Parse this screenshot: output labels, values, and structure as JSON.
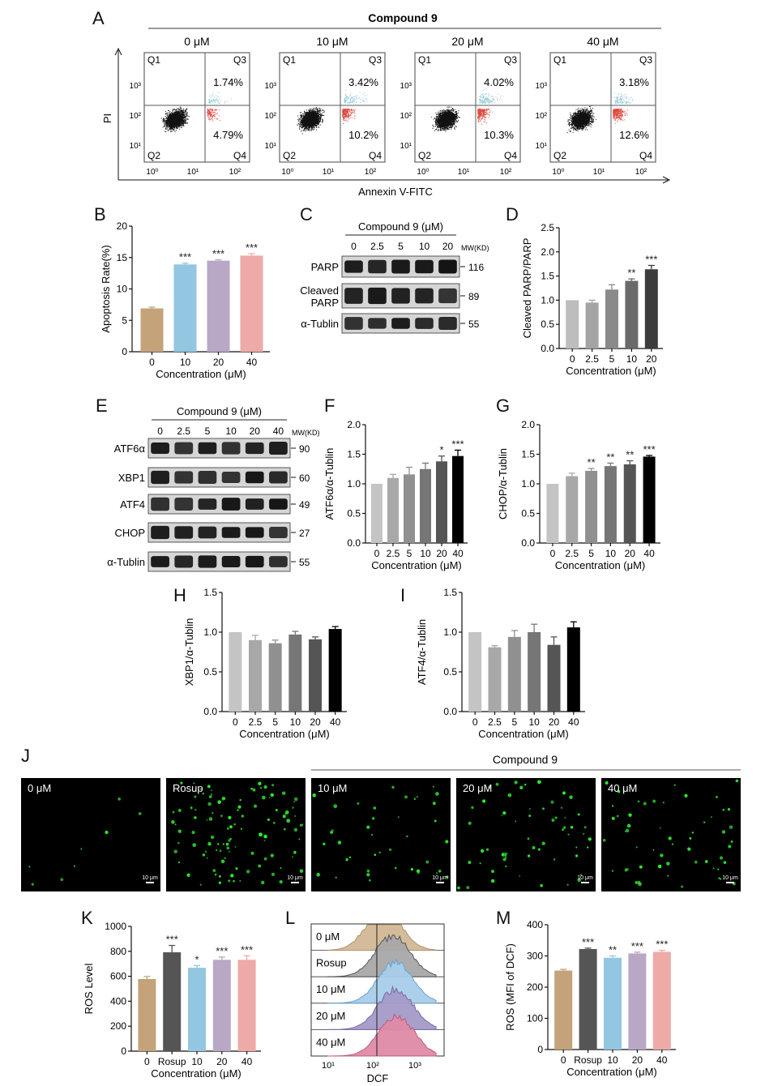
{
  "chart_data": [
    {
      "panel": "A",
      "type": "scatter",
      "header": "Compound 9",
      "xlabel": "Annexin V-FITC",
      "ylabel": "PI",
      "xticks": [
        "10⁰",
        "10¹",
        "10²"
      ],
      "yticks": [
        "10¹",
        "10²",
        "10³"
      ],
      "quadrant_labels": [
        "Q1",
        "Q2",
        "Q3",
        "Q4"
      ],
      "plots": [
        {
          "title": "0 μM",
          "q3": "1.74%",
          "q4": "4.79%"
        },
        {
          "title": "10 μM",
          "q3": "3.42%",
          "q4": "10.2%"
        },
        {
          "title": "20 μM",
          "q3": "4.02%",
          "q4": "10.3%"
        },
        {
          "title": "40 μM",
          "q3": "3.18%",
          "q4": "12.6%"
        }
      ]
    },
    {
      "panel": "B",
      "type": "bar",
      "categories": [
        "0",
        "10",
        "20",
        "40"
      ],
      "values": [
        6.9,
        13.9,
        14.5,
        15.3
      ],
      "errors": [
        0.2,
        0.2,
        0.15,
        0.3
      ],
      "stars": [
        "",
        "***",
        "***",
        "***"
      ],
      "colors": [
        "#c4a27a",
        "#93c6e0",
        "#b8a8c6",
        "#eeaaa6"
      ],
      "xlabel": "Concentration (μM)",
      "ylabel": "Apoptosis Rate(%)",
      "ylim": [
        0,
        20
      ],
      "yticks": [
        0,
        5,
        10,
        15,
        20
      ]
    },
    {
      "panel": "C",
      "type": "table",
      "header": "Compound 9 (μM)",
      "lanes": [
        "0",
        "2.5",
        "5",
        "10",
        "20"
      ],
      "mw_label": "MW(KD)",
      "bands": [
        {
          "name": "PARP",
          "mw": "116"
        },
        {
          "name": "Cleaved PARP",
          "mw": "89"
        },
        {
          "name": "α-Tublin",
          "mw": "55"
        }
      ]
    },
    {
      "panel": "D",
      "type": "bar",
      "categories": [
        "0",
        "2.5",
        "5",
        "10",
        "20"
      ],
      "values": [
        1.0,
        0.95,
        1.22,
        1.4,
        1.64
      ],
      "errors": [
        0.0,
        0.05,
        0.1,
        0.04,
        0.08
      ],
      "stars": [
        "",
        "",
        "",
        "**",
        "***"
      ],
      "colors": [
        "#bdbdbd",
        "#a4a4a4",
        "#8a8a8a",
        "#6a6a6a",
        "#3c3c3c"
      ],
      "xlabel": "Concentration (μM)",
      "ylabel": "Cleaved PARP/PARP",
      "ylim": [
        0,
        2.5
      ],
      "yticks": [
        0.0,
        0.5,
        1.0,
        1.5,
        2.0,
        2.5
      ]
    },
    {
      "panel": "E",
      "type": "table",
      "header": "Compound 9 (μM)",
      "lanes": [
        "0",
        "2.5",
        "5",
        "10",
        "20",
        "40"
      ],
      "mw_label": "MW(KD)",
      "bands": [
        {
          "name": "ATF6α",
          "mw": "90"
        },
        {
          "name": "XBP1",
          "mw": "60"
        },
        {
          "name": "ATF4",
          "mw": "49"
        },
        {
          "name": "CHOP",
          "mw": "27"
        },
        {
          "name": "α-Tublin",
          "mw": "55"
        }
      ]
    },
    {
      "panel": "F",
      "type": "bar",
      "categories": [
        "0",
        "2.5",
        "5",
        "10",
        "20",
        "40"
      ],
      "values": [
        1.0,
        1.1,
        1.16,
        1.25,
        1.38,
        1.47
      ],
      "errors": [
        0.0,
        0.06,
        0.12,
        0.1,
        0.09,
        0.1
      ],
      "stars": [
        "",
        "",
        "",
        "",
        "*",
        "***"
      ],
      "colors": [
        "#c4c4c4",
        "#a8a8a8",
        "#909090",
        "#767676",
        "#555555",
        "#000000"
      ],
      "xlabel": "Concentration (μM)",
      "ylabel": "ATF6α/α-Tublin",
      "ylim": [
        0,
        2.0
      ],
      "yticks": [
        0.0,
        0.5,
        1.0,
        1.5,
        2.0
      ]
    },
    {
      "panel": "G",
      "type": "bar",
      "categories": [
        "0",
        "2.5",
        "5",
        "10",
        "20",
        "40"
      ],
      "values": [
        1.0,
        1.13,
        1.22,
        1.3,
        1.33,
        1.46
      ],
      "errors": [
        0.0,
        0.05,
        0.04,
        0.05,
        0.06,
        0.02
      ],
      "stars": [
        "",
        "",
        "**",
        "**",
        "**",
        "***"
      ],
      "colors": [
        "#c4c4c4",
        "#a8a8a8",
        "#909090",
        "#767676",
        "#555555",
        "#000000"
      ],
      "xlabel": "Concentration (μM)",
      "ylabel": "CHOP/α-Tublin",
      "ylim": [
        0,
        2.0
      ],
      "yticks": [
        0.0,
        0.5,
        1.0,
        1.5,
        2.0
      ]
    },
    {
      "panel": "H",
      "type": "bar",
      "categories": [
        "0",
        "2.5",
        "5",
        "10",
        "20",
        "40"
      ],
      "values": [
        1.0,
        0.9,
        0.86,
        0.97,
        0.91,
        1.04
      ],
      "errors": [
        0.0,
        0.06,
        0.04,
        0.04,
        0.03,
        0.03
      ],
      "stars": [
        "",
        "",
        "",
        "",
        "",
        ""
      ],
      "colors": [
        "#c4c4c4",
        "#a8a8a8",
        "#909090",
        "#767676",
        "#555555",
        "#000000"
      ],
      "xlabel": "Concentration (μM)",
      "ylabel": "XBP1/α-Tublin",
      "ylim": [
        0,
        1.5
      ],
      "yticks": [
        0.0,
        0.5,
        1.0,
        1.5
      ]
    },
    {
      "panel": "I",
      "type": "bar",
      "categories": [
        "0",
        "2.5",
        "5",
        "10",
        "20",
        "40"
      ],
      "values": [
        1.0,
        0.81,
        0.94,
        1.0,
        0.84,
        1.06
      ],
      "errors": [
        0.0,
        0.02,
        0.08,
        0.1,
        0.1,
        0.07
      ],
      "stars": [
        "",
        "",
        "",
        "",
        "",
        ""
      ],
      "colors": [
        "#c4c4c4",
        "#a8a8a8",
        "#909090",
        "#767676",
        "#555555",
        "#000000"
      ],
      "xlabel": "Concentration (μM)",
      "ylabel": "ATF4/α-Tublin",
      "ylim": [
        0,
        1.5
      ],
      "yticks": [
        0.0,
        0.5,
        1.0,
        1.5
      ]
    },
    {
      "panel": "J",
      "type": "other",
      "header": "Compound 9",
      "scale_bar": "10 μm",
      "images": [
        {
          "label": "0 μM",
          "density": 8
        },
        {
          "label": "Rosup",
          "density": 110
        },
        {
          "label": "10 μM",
          "density": 40
        },
        {
          "label": "20 μM",
          "density": 60
        },
        {
          "label": "40 μM",
          "density": 55
        }
      ]
    },
    {
      "panel": "K",
      "type": "bar",
      "categories": [
        "0",
        "Rosup",
        "10",
        "20",
        "40"
      ],
      "values": [
        578,
        792,
        668,
        732,
        732
      ],
      "errors": [
        20,
        55,
        18,
        22,
        32
      ],
      "stars": [
        "",
        "***",
        "*",
        "***",
        "***"
      ],
      "colors": [
        "#c4a27a",
        "#555555",
        "#93c6e0",
        "#b8a8c6",
        "#eeaaa6"
      ],
      "xlabel": "Concentration (μM)",
      "ylabel": "ROS Level",
      "ylim": [
        0,
        1000
      ],
      "yticks": [
        0,
        200,
        400,
        600,
        800,
        1000
      ]
    },
    {
      "panel": "L",
      "type": "area",
      "xlabel": "DCF",
      "xticks": [
        "10¹",
        "10²",
        "10³"
      ],
      "series": [
        {
          "name": "0 μM",
          "color": "#b0926c",
          "fill": "#d2b896"
        },
        {
          "name": "Rosup",
          "color": "#555555",
          "fill": "#a8a8a8"
        },
        {
          "name": "10 μM",
          "color": "#6aa3d2",
          "fill": "#a8cdea"
        },
        {
          "name": "20 μM",
          "color": "#7a6aa6",
          "fill": "#a49ac8"
        },
        {
          "name": "40 μM",
          "color": "#c05a7a",
          "fill": "#de8aa6"
        }
      ]
    },
    {
      "panel": "M",
      "type": "bar",
      "categories": [
        "0",
        "Rosup",
        "10",
        "20",
        "40"
      ],
      "values": [
        253,
        322,
        294,
        308,
        313
      ],
      "errors": [
        4,
        3,
        6,
        4,
        5
      ],
      "stars": [
        "",
        "***",
        "**",
        "***",
        "***"
      ],
      "colors": [
        "#c4a27a",
        "#555555",
        "#93c6e0",
        "#b8a8c6",
        "#eeaaa6"
      ],
      "xlabel": "Concentration (μM)",
      "ylabel": "ROS (MFI of DCF)",
      "ylim": [
        0,
        400
      ],
      "yticks": [
        0,
        100,
        200,
        300,
        400
      ]
    }
  ]
}
